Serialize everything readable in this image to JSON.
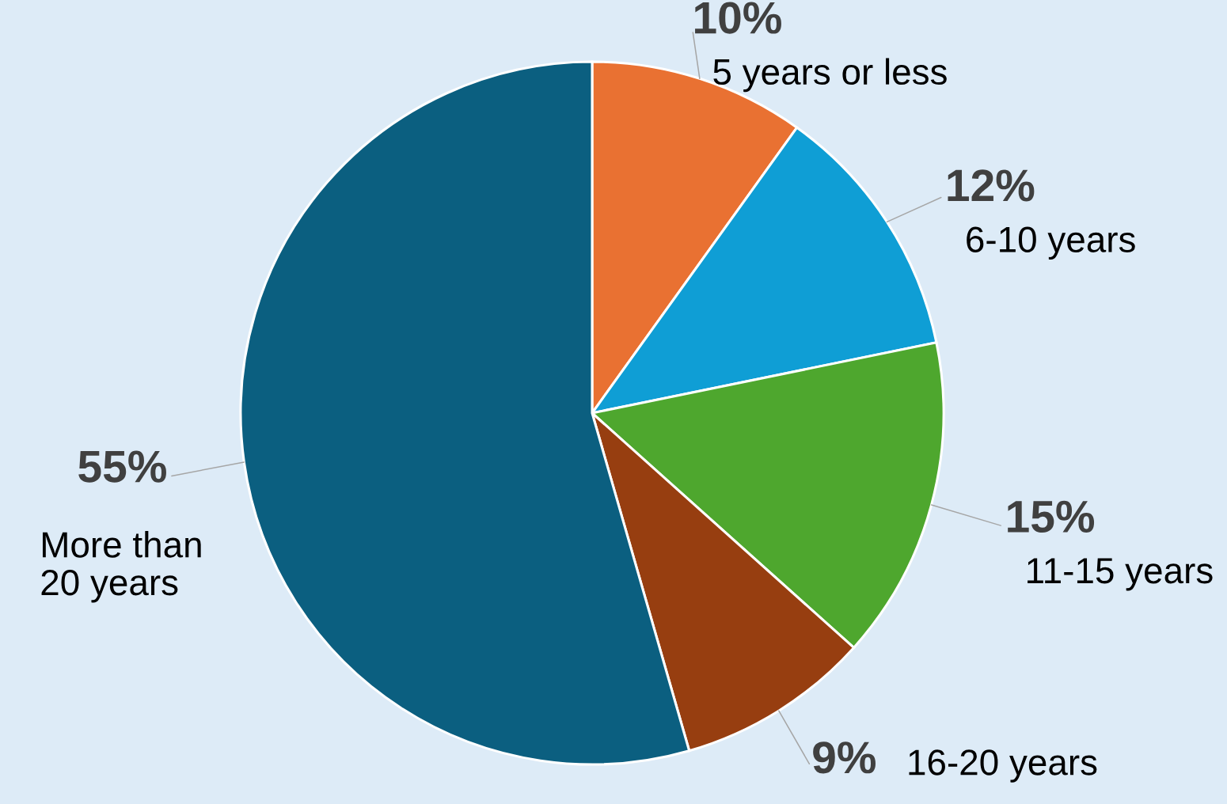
{
  "chart_data": {
    "type": "pie",
    "categories": [
      "5 years or less",
      "6-10 years",
      "11-15 years",
      "16-20 years",
      "More than\n20 years"
    ],
    "values": [
      10,
      12,
      15,
      9,
      55
    ],
    "colors": [
      "#e97132",
      "#0f9ed5",
      "#4ea72e",
      "#973e10",
      "#0b5f80"
    ],
    "value_labels": [
      "10%",
      "12%",
      "15%",
      "9%",
      "55%"
    ]
  }
}
